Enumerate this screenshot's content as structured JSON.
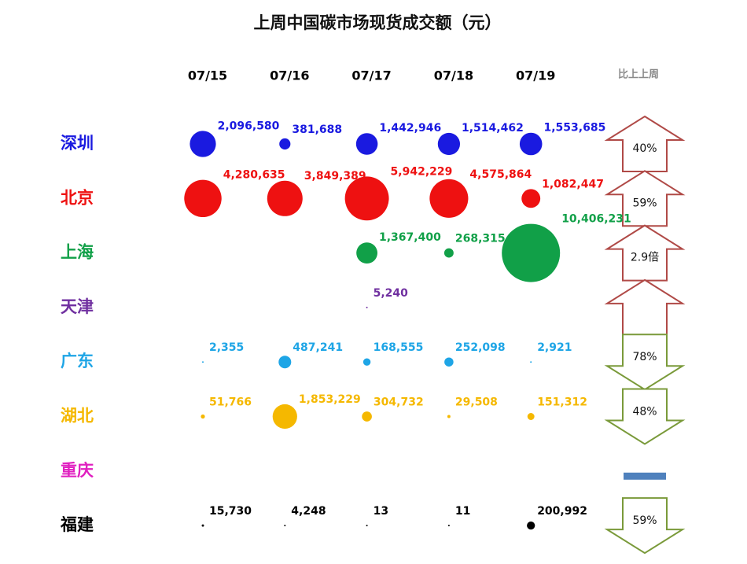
{
  "chart_data": {
    "type": "bubble",
    "title": "上周中国碳市场现货成交额（元）",
    "categories": [
      "07/15",
      "07/16",
      "07/17",
      "07/18",
      "07/19"
    ],
    "change_header": "比上上周",
    "series": [
      {
        "name": "深圳",
        "color": "#1a1ae0",
        "values": [
          2096580,
          381688,
          1442946,
          1514462,
          1553685
        ],
        "value_labels": [
          "2,096,580",
          "381,688",
          "1,442,946",
          "1,514,462",
          "1,553,685"
        ],
        "change": {
          "direction": "up",
          "label": "40%"
        }
      },
      {
        "name": "北京",
        "color": "#ee1111",
        "values": [
          4280635,
          3849389,
          5942229,
          4575864,
          1082447
        ],
        "value_labels": [
          "4,280,635",
          "3,849,389",
          "5,942,229",
          "4,575,864",
          "1,082,447"
        ],
        "change": {
          "direction": "up",
          "label": "59%"
        }
      },
      {
        "name": "上海",
        "color": "#11a048",
        "values": [
          null,
          null,
          1367400,
          268315,
          10406231
        ],
        "value_labels": [
          null,
          null,
          "1,367,400",
          "268,315",
          "10,406,231"
        ],
        "change": {
          "direction": "up",
          "label": "2.9倍"
        }
      },
      {
        "name": "天津",
        "color": "#7030a0",
        "values": [
          null,
          null,
          5240,
          null,
          null
        ],
        "value_labels": [
          null,
          null,
          "5,240",
          null,
          null
        ],
        "change": {
          "direction": "up"
        }
      },
      {
        "name": "广东",
        "color": "#1ea5e6",
        "values": [
          2355,
          487241,
          168555,
          252098,
          2921
        ],
        "value_labels": [
          "2,355",
          "487,241",
          "168,555",
          "252,098",
          "2,921"
        ],
        "change": {
          "direction": "down",
          "label": "78%"
        }
      },
      {
        "name": "湖北",
        "color": "#f5b800",
        "values": [
          51766,
          1853229,
          304732,
          29508,
          151312
        ],
        "value_labels": [
          "51,766",
          "1,853,229",
          "304,732",
          "29,508",
          "151,312"
        ],
        "change": {
          "direction": "down",
          "label": "48%"
        }
      },
      {
        "name": "重庆",
        "color": "#e020c0",
        "values": [
          null,
          null,
          null,
          null,
          null
        ],
        "value_labels": [
          null,
          null,
          null,
          null,
          null
        ],
        "change": {
          "direction": "flat"
        }
      },
      {
        "name": "福建",
        "color": "#000000",
        "values": [
          15730,
          4248,
          13,
          11,
          200992
        ],
        "value_labels": [
          "15,730",
          "4,248",
          "13",
          "11",
          "200,992"
        ],
        "change": {
          "direction": "down",
          "label": "59%"
        }
      }
    ]
  }
}
